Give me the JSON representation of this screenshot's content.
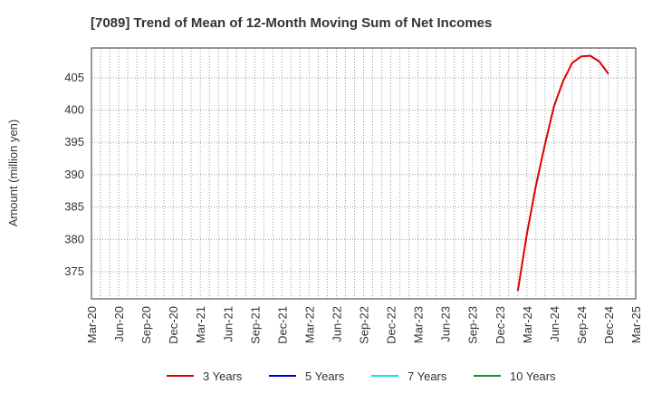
{
  "chart_data": {
    "type": "line",
    "title": "[7089]  Trend of Mean of 12-Month Moving Sum of Net Incomes",
    "xlabel": "",
    "ylabel": "Amount (million yen)",
    "ylim": [
      370.8,
      409.6
    ],
    "yticks": [
      375,
      380,
      385,
      390,
      395,
      400,
      405
    ],
    "x_tick_labels": [
      "Mar-20",
      "Jun-20",
      "Sep-20",
      "Dec-20",
      "Mar-21",
      "Jun-21",
      "Sep-21",
      "Dec-21",
      "Mar-22",
      "Jun-22",
      "Sep-22",
      "Dec-22",
      "Mar-23",
      "Jun-23",
      "Sep-23",
      "Dec-23",
      "Mar-24",
      "Jun-24",
      "Sep-24",
      "Dec-24",
      "Mar-25"
    ],
    "x_start_month_index": 0,
    "x_months_total": 60,
    "grid": true,
    "legend_position": "bottom",
    "series": [
      {
        "name": "3 Years",
        "color": "#dd0000",
        "start_month": "Feb-24",
        "month_offset": 47,
        "values": [
          372.0,
          380.8,
          388.3,
          394.7,
          400.6,
          404.5,
          407.3,
          408.3,
          408.4,
          407.5,
          405.6
        ]
      },
      {
        "name": "5 Years",
        "color": "#0000cc",
        "values": []
      },
      {
        "name": "7 Years",
        "color": "#00e5ee",
        "values": []
      },
      {
        "name": "10 Years",
        "color": "#228b22",
        "values": []
      }
    ]
  }
}
